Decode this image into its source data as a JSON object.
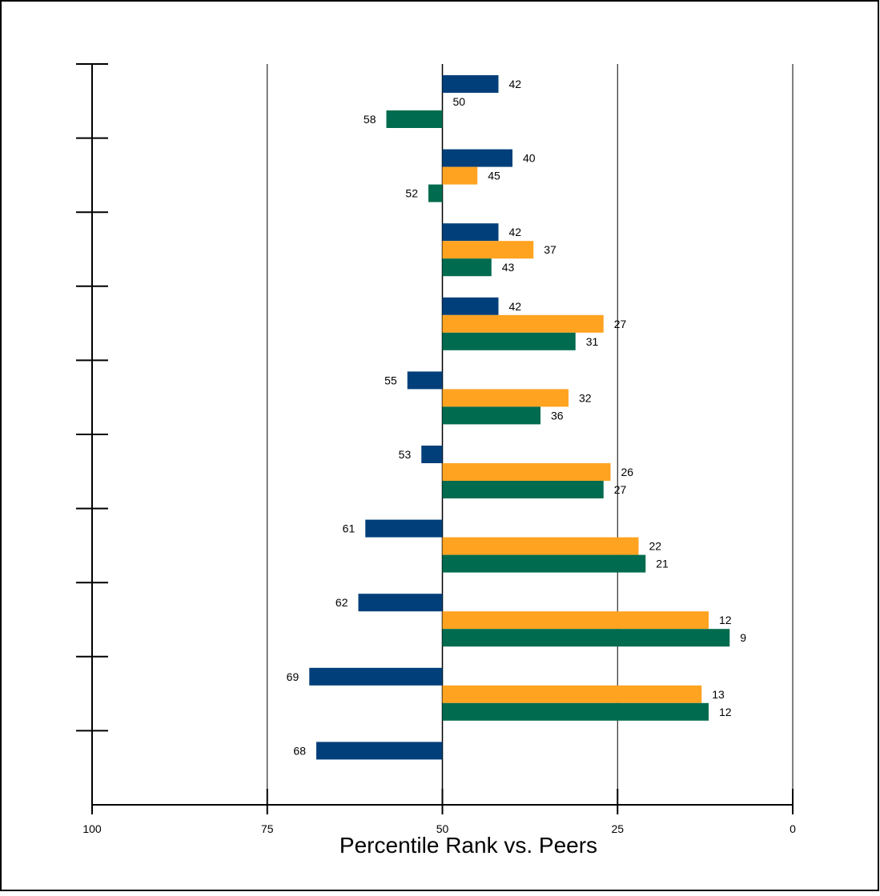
{
  "chart_data": {
    "type": "bar",
    "orientation": "horizontal",
    "x_axis_reversed": true,
    "xlabel": "Percentile Rank vs. Peers",
    "xlim": [
      100,
      0
    ],
    "baseline": 50,
    "x_ticks": [
      100,
      75,
      50,
      25,
      0
    ],
    "grid": true,
    "legend": "none",
    "group_count": 10,
    "series": [
      {
        "color": "#003f7a",
        "values": [
          42,
          40,
          42,
          42,
          55,
          53,
          61,
          62,
          69,
          68
        ]
      },
      {
        "color": "#ffa321",
        "values": [
          50,
          45,
          37,
          27,
          32,
          26,
          22,
          12,
          13,
          null
        ]
      },
      {
        "color": "#006b4e",
        "values": [
          58,
          52,
          43,
          31,
          36,
          27,
          21,
          9,
          12,
          null
        ]
      }
    ]
  }
}
